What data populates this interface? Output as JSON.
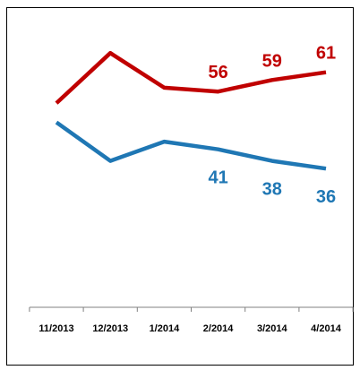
{
  "chart_data": {
    "type": "line",
    "categories": [
      "11/2013",
      "12/2013",
      "1/2014",
      "2/2014",
      "3/2014",
      "4/2014"
    ],
    "ylim": [
      0,
      100
    ],
    "grid": false,
    "legend": "none",
    "series": [
      {
        "color": "#c00000",
        "values": [
          53,
          66,
          57,
          56,
          59,
          61
        ],
        "labels": [
          "",
          "",
          "",
          "56",
          "59",
          "61"
        ]
      },
      {
        "color": "#1f77b4",
        "values": [
          48,
          38,
          43,
          41,
          38,
          36
        ],
        "labels": [
          "",
          "",
          "",
          "41",
          "38",
          "36"
        ]
      }
    ]
  }
}
